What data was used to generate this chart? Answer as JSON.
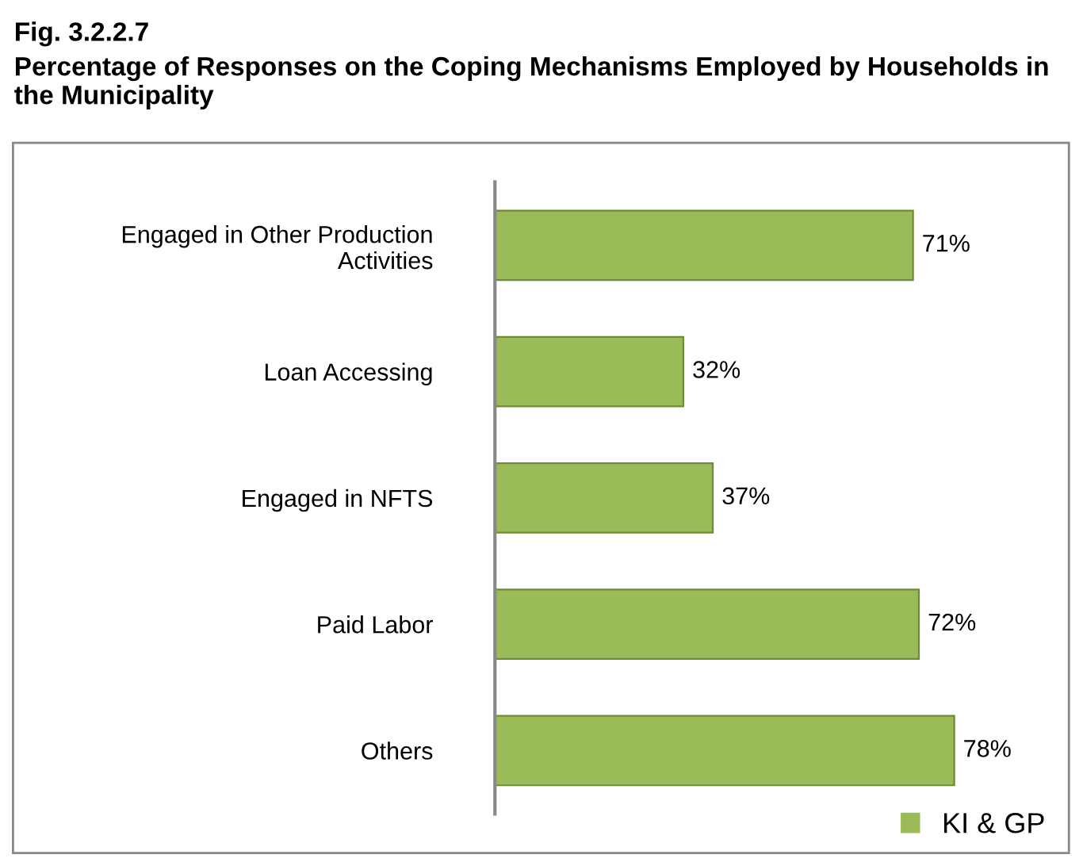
{
  "chart_data": {
    "type": "bar",
    "orientation": "horizontal",
    "title": "Fig. 3.2.2.7",
    "subtitle": "Percentage of Responses on the Coping Mechanisms Employed by Households in the Municipality",
    "categories": [
      "Engaged in Other Production\nActivities",
      "Loan Accessing",
      "Engaged in NFTS",
      "Paid Labor",
      "Others"
    ],
    "series": [
      {
        "name": "KI & GP",
        "color": "#9bbb59",
        "values": [
          71,
          32,
          37,
          72,
          78
        ],
        "value_labels": [
          "71%",
          "32%",
          "37%",
          "72%",
          "78%"
        ]
      }
    ],
    "legend": "bottom right",
    "grid": false
  }
}
